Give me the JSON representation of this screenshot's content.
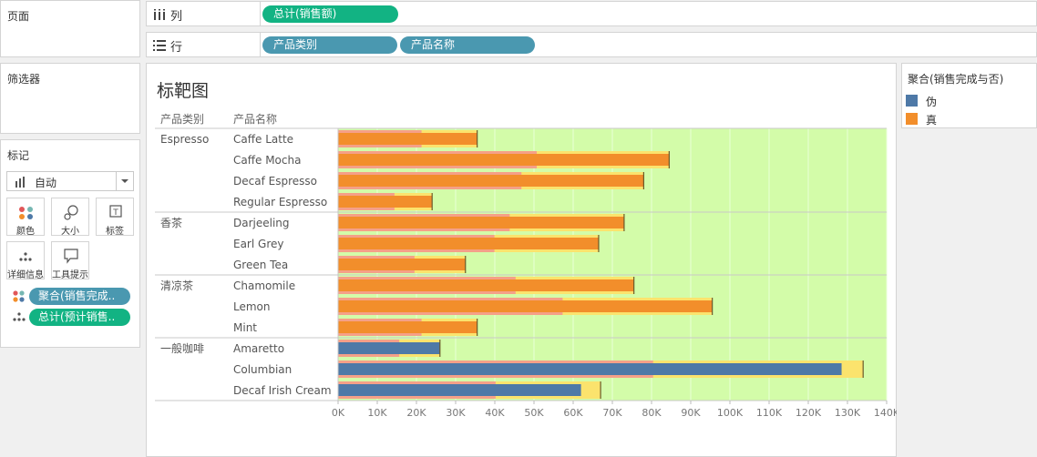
{
  "pages_panel": {
    "title": "页面"
  },
  "filters_panel": {
    "title": "筛选器"
  },
  "marks_panel": {
    "title": "标记",
    "mark_type": "自动",
    "buttons": [
      {
        "label": "颜色",
        "icon": "color-dots-icon"
      },
      {
        "label": "大小",
        "icon": "size-icon"
      },
      {
        "label": "标签",
        "icon": "label-icon"
      },
      {
        "label": "详细信息",
        "icon": "detail-icon"
      },
      {
        "label": "工具提示",
        "icon": "tooltip-icon"
      }
    ],
    "fields": [
      {
        "label": "聚合(销售完成..",
        "icon": "color-dots-icon"
      },
      {
        "label": "总计(预计销售..",
        "icon": "detail-icon"
      }
    ]
  },
  "columns_shelf": {
    "label": "列",
    "pills": [
      "总计(销售额)"
    ]
  },
  "rows_shelf": {
    "label": "行",
    "pills": [
      "产品类别",
      "产品名称"
    ]
  },
  "legend": {
    "title": "聚合(销售完成与否)",
    "items": [
      {
        "label": "伪",
        "color": "#4e79a7"
      },
      {
        "label": "真",
        "color": "#f28e2b"
      }
    ]
  },
  "chart_data": {
    "type": "bar",
    "title": "标靶图",
    "header_category": "产品类别",
    "header_name": "产品名称",
    "xlim": [
      0,
      140000
    ],
    "x_ticks": [
      "0K",
      "10K",
      "20K",
      "30K",
      "40K",
      "50K",
      "60K",
      "70K",
      "80K",
      "90K",
      "100K",
      "110K",
      "120K",
      "130K",
      "140K"
    ],
    "groups": [
      {
        "category": "Espresso",
        "rows": [
          {
            "name": "Caffe Latte",
            "sales": 35500,
            "target": 35500,
            "complete": true
          },
          {
            "name": "Caffe Mocha",
            "sales": 84500,
            "target": 84500,
            "complete": true
          },
          {
            "name": "Decaf Espresso",
            "sales": 78000,
            "target": 78000,
            "complete": true
          },
          {
            "name": "Regular Espresso",
            "sales": 24000,
            "target": 24000,
            "complete": true
          }
        ]
      },
      {
        "category": "香茶",
        "rows": [
          {
            "name": "Darjeeling",
            "sales": 73000,
            "target": 73000,
            "complete": true
          },
          {
            "name": "Earl Grey",
            "sales": 66500,
            "target": 66500,
            "complete": true
          },
          {
            "name": "Green Tea",
            "sales": 32500,
            "target": 32500,
            "complete": true
          }
        ]
      },
      {
        "category": "清凉茶",
        "rows": [
          {
            "name": "Chamomile",
            "sales": 75500,
            "target": 75500,
            "complete": true
          },
          {
            "name": "Lemon",
            "sales": 95500,
            "target": 95500,
            "complete": true
          },
          {
            "name": "Mint",
            "sales": 35500,
            "target": 35500,
            "complete": true
          }
        ]
      },
      {
        "category": "一般咖啡",
        "rows": [
          {
            "name": "Amaretto",
            "sales": 26000,
            "target": 26000,
            "complete": false
          },
          {
            "name": "Columbian",
            "sales": 128500,
            "target": 134000,
            "complete": false
          },
          {
            "name": "Decaf Irish Cream",
            "sales": 62000,
            "target": 67000,
            "complete": false
          }
        ]
      }
    ],
    "colors": {
      "true": "#f28e2b",
      "false": "#4e79a7",
      "band_outer": "#d3fca9",
      "band_mid": "#fbe36d",
      "band_inner": "#f5a088"
    }
  }
}
